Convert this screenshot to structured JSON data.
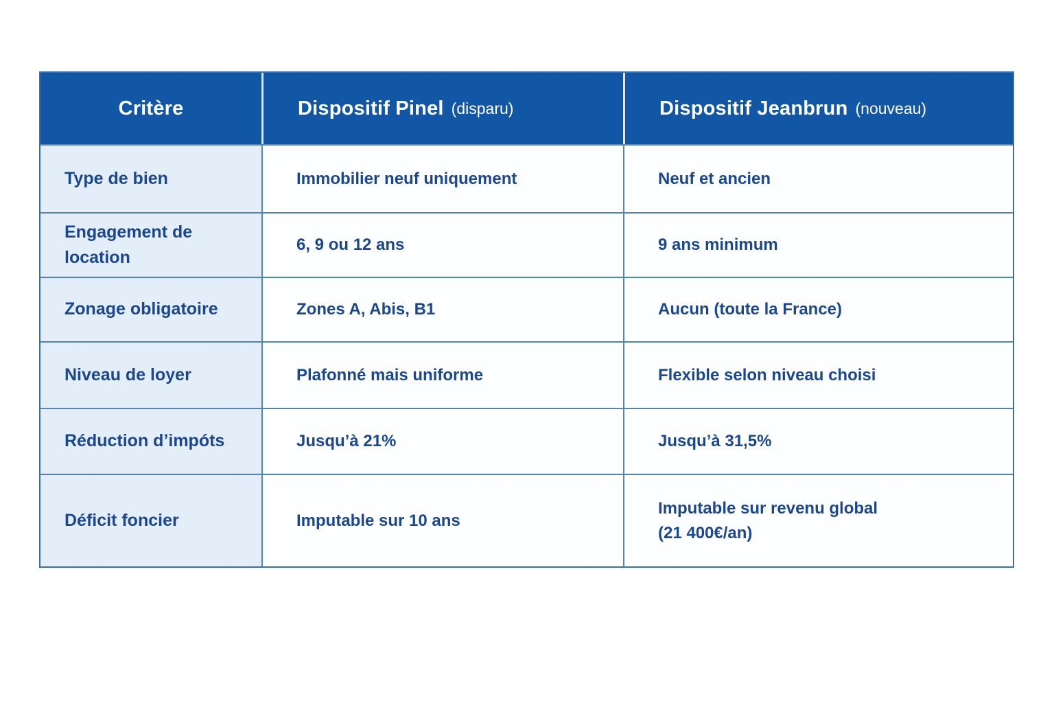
{
  "table": {
    "header": {
      "col1": "Critère",
      "col2_main": "Dispositif Pinel",
      "col2_note": "(disparu)",
      "col3_main": "Dispositif Jeanbrun",
      "col3_note": "(nouveau)"
    },
    "rows": [
      {
        "critere": "Type de bien",
        "pinel": "Immobilier neuf uniquement",
        "jeanbrun": "Neuf et ancien"
      },
      {
        "critere": "Engagement de location",
        "pinel": "6, 9 ou 12 ans",
        "jeanbrun": "9 ans minimum"
      },
      {
        "critere": "Zonage obligatoire",
        "pinel": "Zones A, Abis, B1",
        "jeanbrun": "Aucun (toute la France)"
      },
      {
        "critere": "Niveau de loyer",
        "pinel": "Plafonné mais uniforme",
        "jeanbrun": "Flexible selon niveau choisi"
      },
      {
        "critere": "Réduction d’impóts",
        "pinel": "Jusqu’à 21%",
        "jeanbrun": "Jusqu’à 31,5%"
      },
      {
        "critere": "Déficit foncier",
        "pinel": "Imputable sur 10 ans",
        "jeanbrun": "Imputable sur revenu global\n(21 400€/an)"
      }
    ]
  },
  "colors": {
    "header_background": "#1157a6",
    "header_text": "#ffffff",
    "body_text": "#1a478e",
    "label_column_background": "#e4eef8",
    "value_cell_background": "#fdfeff",
    "grid_border": "#5184b8",
    "outer_border": "#3a6fa8"
  },
  "chart_data": {
    "type": "table",
    "title": "",
    "columns": [
      "Critère",
      "Dispositif Pinel (disparu)",
      "Dispositif Jeanbrun (nouveau)"
    ],
    "rows": [
      [
        "Type de bien",
        "Immobilier neuf uniquement",
        "Neuf et ancien"
      ],
      [
        "Engagement de location",
        "6, 9 ou 12 ans",
        "9 ans minimum"
      ],
      [
        "Zonage obligatoire",
        "Zones A, Abis, B1",
        "Aucun (toute la France)"
      ],
      [
        "Niveau de loyer",
        "Plafonné mais uniforme",
        "Flexible selon niveau choisi"
      ],
      [
        "Réduction d’impóts",
        "Jusqu’à 21%",
        "Jusqu’à 31,5%"
      ],
      [
        "Déficit foncier",
        "Imputable sur 10 ans",
        "Imputable sur revenu global (21 400€/an)"
      ]
    ],
    "layout_hints": {
      "header_fill": "#1157a6",
      "first_column_fill": "#e4eef8",
      "grid": "on"
    }
  }
}
